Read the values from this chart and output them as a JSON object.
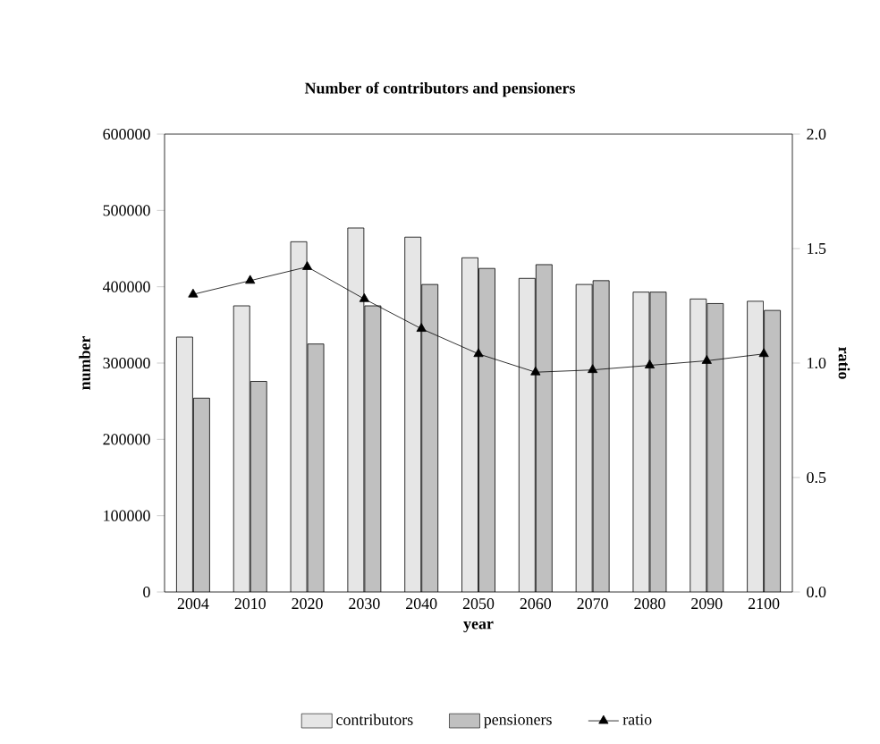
{
  "chart_data": {
    "type": "bar",
    "title": "Number of contributors and pensioners",
    "xlabel": "year",
    "ylabel": "number",
    "y2label": "ratio",
    "categories": [
      "2004",
      "2010",
      "2020",
      "2030",
      "2040",
      "2050",
      "2060",
      "2070",
      "2080",
      "2090",
      "2100"
    ],
    "series": [
      {
        "name": "contributors",
        "color": "#e6e6e6",
        "values": [
          334000,
          375000,
          459000,
          477000,
          465000,
          438000,
          411000,
          403000,
          393000,
          384000,
          381000
        ]
      },
      {
        "name": "pensioners",
        "color": "#c0c0c0",
        "values": [
          254000,
          276000,
          325000,
          375000,
          403000,
          424000,
          429000,
          408000,
          393000,
          378000,
          369000
        ]
      },
      {
        "name": "ratio",
        "type": "line",
        "axis": "y2",
        "color": "#000000",
        "marker": "triangle",
        "values": [
          1.3,
          1.36,
          1.42,
          1.28,
          1.15,
          1.04,
          0.96,
          0.97,
          0.99,
          1.01,
          1.04
        ]
      }
    ],
    "ylim": [
      0,
      600000
    ],
    "yticks": [
      0,
      100000,
      200000,
      300000,
      400000,
      500000,
      600000
    ],
    "y2lim": [
      0.0,
      2.0
    ],
    "y2ticks": [
      {
        "value": 0,
        "label": "0.0"
      },
      {
        "value": 0.5,
        "label": "0.5"
      },
      {
        "value": 1,
        "label": "1.0"
      },
      {
        "value": 1.5,
        "label": "1.5"
      },
      {
        "value": 2,
        "label": "2.0"
      }
    ],
    "grid": false,
    "legend": "bottom"
  }
}
